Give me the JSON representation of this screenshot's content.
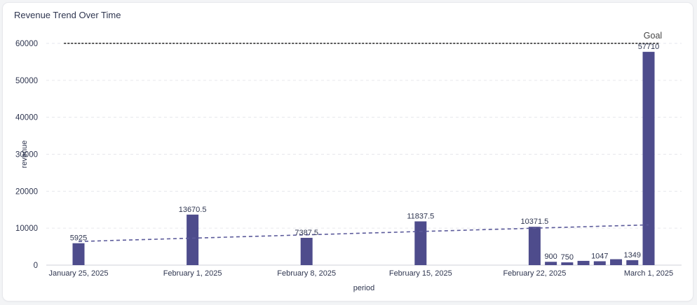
{
  "card": {
    "title": "Revenue Trend Over Time"
  },
  "chart_data": {
    "type": "bar",
    "title": "Revenue Trend Over Time",
    "xlabel": "period",
    "ylabel": "revenue",
    "ylim": [
      0,
      60000
    ],
    "yticks": [
      0,
      10000,
      20000,
      30000,
      40000,
      50000,
      60000
    ],
    "x_tick_labels": [
      {
        "date": "2025-01-25",
        "label": "January 25, 2025"
      },
      {
        "date": "2025-02-01",
        "label": "February 1, 2025"
      },
      {
        "date": "2025-02-08",
        "label": "February 8, 2025"
      },
      {
        "date": "2025-02-15",
        "label": "February 15, 2025"
      },
      {
        "date": "2025-02-22",
        "label": "February 22, 2025"
      },
      {
        "date": "2025-03-01",
        "label": "March 1, 2025"
      }
    ],
    "bars": [
      {
        "date": "2025-01-25",
        "value": 5925,
        "label": "5925"
      },
      {
        "date": "2025-02-01",
        "value": 13670.5,
        "label": "13670.5"
      },
      {
        "date": "2025-02-08",
        "value": 7387.5,
        "label": "7387.5"
      },
      {
        "date": "2025-02-15",
        "value": 11837.5,
        "label": "11837.5"
      },
      {
        "date": "2025-02-22",
        "value": 10371.5,
        "label": "10371.5"
      },
      {
        "date": "2025-02-23",
        "value": 900,
        "label": "900"
      },
      {
        "date": "2025-02-24",
        "value": 750,
        "label": "750"
      },
      {
        "date": "2025-02-25",
        "value": 1150,
        "label": ""
      },
      {
        "date": "2025-02-26",
        "value": 1047,
        "label": "1047"
      },
      {
        "date": "2025-02-27",
        "value": 1600,
        "label": ""
      },
      {
        "date": "2025-02-28",
        "value": 1349,
        "label": "1349"
      },
      {
        "date": "2025-03-01",
        "value": 57710,
        "label": "57710"
      }
    ],
    "goal": {
      "value": 60000,
      "label": "Goal"
    },
    "trendline": {
      "from": {
        "date": "2025-01-25",
        "value": 6400
      },
      "to": {
        "date": "2025-03-01",
        "value": 10900
      }
    },
    "grid": true,
    "colors": {
      "bar": "#4e4c8c",
      "trend": "#5b5a9a",
      "goal": "#555555",
      "grid": "#e6e7ec",
      "text": "#2f3650"
    }
  }
}
